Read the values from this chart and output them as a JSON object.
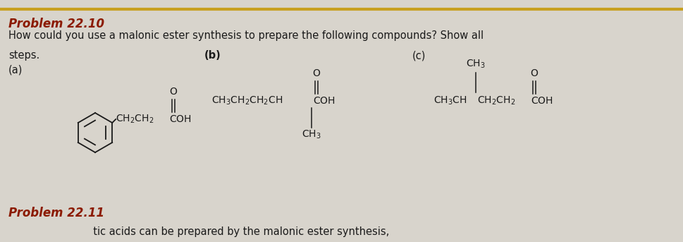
{
  "bg_color": "#d8d4cc",
  "page_bg": "#e8e4dc",
  "gold_line_color": "#c8a020",
  "title_text": "Problem 22.10",
  "title_color": "#8B1A00",
  "title_fontsize": 12,
  "body_fontsize": 10.5,
  "subtitle_text": "How could you use a malonic ester synthesis to prepare the following compounds? Show all",
  "steps_text": "steps.",
  "label_a": "(a)",
  "label_b": "(b)",
  "label_c": "(c)",
  "problem_22_11_text": "Problem 22.11",
  "problem_22_11_color": "#8B1A00",
  "bottom_text": "                          tic acids can be prepared by the malonic ester synthesis,",
  "text_color": "#1a1a1a",
  "chem_fontsize": 10.0
}
